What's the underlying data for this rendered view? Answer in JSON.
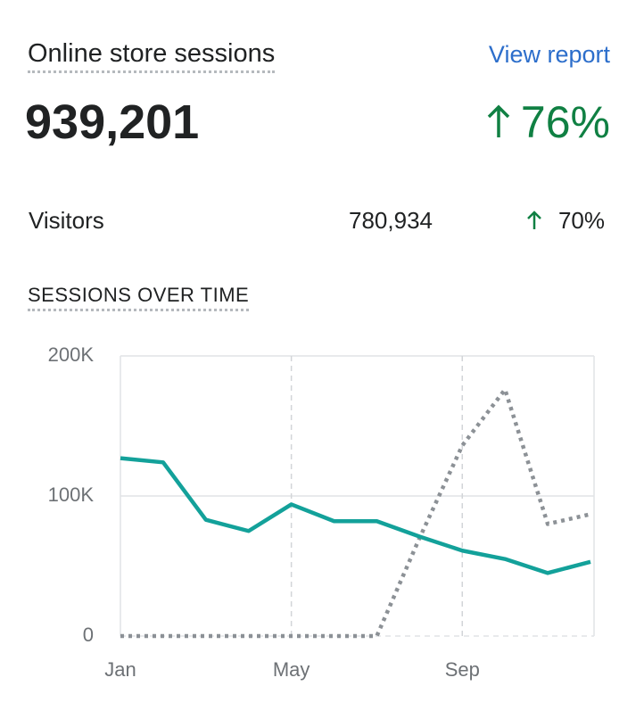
{
  "header": {
    "title": "Online store sessions",
    "link": "View report",
    "total": "939,201",
    "change": "76%"
  },
  "metrics": {
    "rows": [
      {
        "label": "Visitors",
        "value": "780,934",
        "change": "70%"
      }
    ]
  },
  "section_title": "SESSIONS OVER TIME",
  "chart_data": {
    "type": "line",
    "categories": [
      "Jan",
      null,
      null,
      null,
      "May",
      null,
      null,
      null,
      "Sep",
      null,
      null,
      null
    ],
    "series": [
      {
        "color": "#13a19a",
        "line_style": "solid",
        "values": [
          127000,
          124000,
          83000,
          75000,
          94000,
          82000,
          82000,
          71000,
          61000,
          55000,
          45000,
          53000
        ]
      },
      {
        "color": "#8c9196",
        "line_style": "dotted",
        "values": [
          0,
          0,
          0,
          0,
          0,
          0,
          0,
          70000,
          136000,
          176000,
          80000,
          87000
        ]
      }
    ],
    "ylim": [
      0,
      200000
    ],
    "yticks": [
      0,
      {
        "value": 100000,
        "label": "100K"
      },
      {
        "value": 200000,
        "label": "200K"
      }
    ],
    "grid": true
  }
}
